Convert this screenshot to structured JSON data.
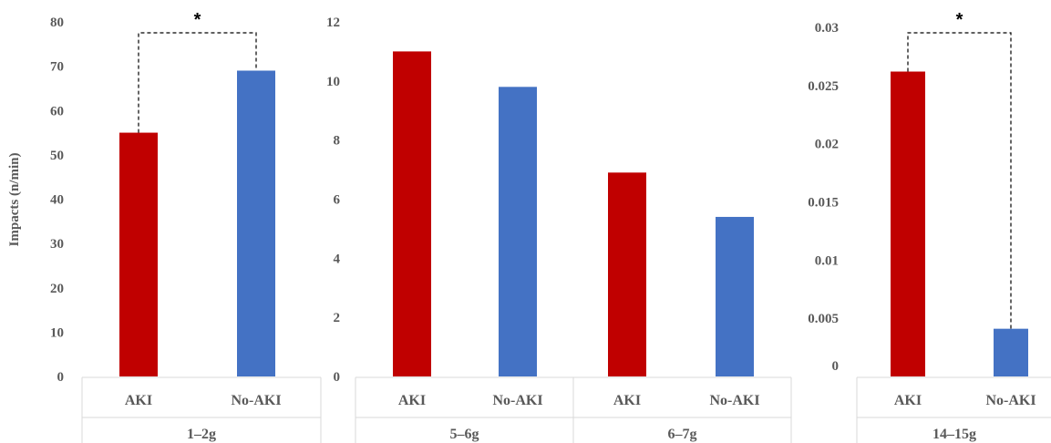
{
  "chart_data": [
    {
      "type": "bar",
      "ylabel": "Impacts (n/min)",
      "ylim": [
        0,
        80
      ],
      "yticks": [
        "0",
        "10",
        "20",
        "30",
        "40",
        "50",
        "60",
        "70",
        "80"
      ],
      "groups": [
        {
          "name": "1–2g",
          "categories": [
            "AKI",
            "No-AKI"
          ],
          "values": [
            55,
            69
          ]
        }
      ],
      "colors": [
        "#c00000",
        "#4472c4"
      ],
      "annotations": [
        {
          "text": "*",
          "between": [
            "AKI",
            "No-AKI"
          ]
        }
      ]
    },
    {
      "type": "bar",
      "ylabel": "",
      "ylim": [
        0,
        12
      ],
      "yticks": [
        "0",
        "2",
        "4",
        "6",
        "8",
        "10",
        "12"
      ],
      "groups": [
        {
          "name": "5–6g",
          "categories": [
            "AKI",
            "No-AKI"
          ],
          "values": [
            11.0,
            9.8
          ]
        },
        {
          "name": "6–7g",
          "categories": [
            "AKI",
            "No-AKI"
          ],
          "values": [
            6.9,
            5.4
          ]
        }
      ],
      "colors": [
        "#c00000",
        "#4472c4"
      ],
      "annotations": []
    },
    {
      "type": "bar",
      "ylabel": "",
      "ylim": [
        0,
        0.03
      ],
      "yticks": [
        "0",
        "0.005",
        "0.01",
        "0.015",
        "0.02",
        "0.025",
        "0.03"
      ],
      "groups": [
        {
          "name": "14–15g",
          "categories": [
            "AKI",
            "No-AKI"
          ],
          "values": [
            0.0262,
            0.0041
          ]
        }
      ],
      "colors": [
        "#c00000",
        "#4472c4"
      ],
      "annotations": [
        {
          "text": "*",
          "between": [
            "AKI",
            "No-AKI"
          ]
        }
      ]
    }
  ]
}
